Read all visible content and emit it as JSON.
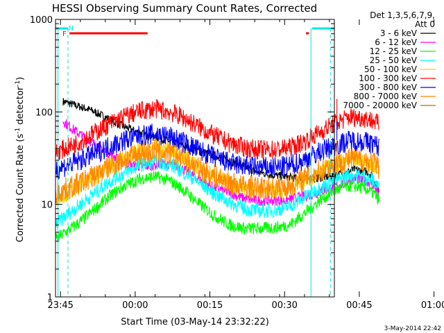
{
  "chart_data": {
    "type": "line",
    "title": "HESSI Observing Summary Count Rates, Corrected",
    "xlabel": "Start Time (03-May-14 23:32:22)",
    "ylabel_main": "Corrected Count Rate (s",
    "ylabel_sup1": "-1",
    "ylabel_mid": " detector",
    "ylabel_sup2": "-1",
    "ylabel_end": ")",
    "yscale": "log",
    "ylim": [
      1,
      1000
    ],
    "xlim_minutes": [
      -16,
      40
    ],
    "x_ticks": [
      {
        "m": -15,
        "label": "23:45"
      },
      {
        "m": 0,
        "label": "00:00"
      },
      {
        "m": 15,
        "label": "00:15"
      },
      {
        "m": 30,
        "label": "00:30"
      },
      {
        "m": 45,
        "label": "00:45"
      },
      {
        "m": 60,
        "label": "01:00"
      }
    ],
    "y_ticks": [
      {
        "v": 1,
        "label": "1"
      },
      {
        "v": 10,
        "label": "10"
      },
      {
        "v": 100,
        "label": "100"
      },
      {
        "v": 1000,
        "label": "1000"
      }
    ],
    "legend_header": [
      "Det 1,3,5,6,7,9,",
      "Att 0"
    ],
    "timestamp": "3-May-2014 22:42",
    "markers": [
      {
        "label": "F",
        "color": "#ff0000"
      },
      {
        "label": "N",
        "color": "#00e5e5"
      }
    ],
    "series": [
      {
        "name": "3 - 6 keV",
        "color": "#000000",
        "points": [
          [
            -14.5,
            130
          ],
          [
            -12,
            118
          ],
          [
            -9,
            105
          ],
          [
            -6,
            88
          ],
          [
            -3,
            72
          ],
          [
            0,
            62
          ],
          [
            3,
            55
          ],
          [
            6,
            50
          ],
          [
            9,
            44
          ],
          [
            12,
            39
          ],
          [
            15,
            35
          ],
          [
            18,
            31
          ],
          [
            21,
            27
          ],
          [
            24,
            23
          ],
          [
            27,
            21
          ],
          [
            30,
            20
          ],
          [
            33,
            19
          ],
          [
            36,
            19
          ],
          [
            39,
            20
          ],
          [
            42,
            22
          ],
          [
            44,
            24
          ],
          [
            46,
            23
          ],
          [
            47.5,
            21
          ],
          [
            49,
            14
          ]
        ]
      },
      {
        "name": "6 - 12 keV",
        "color": "#ff00ff",
        "points": [
          [
            -14.5,
            80
          ],
          [
            -12,
            62
          ],
          [
            -9,
            48
          ],
          [
            -6,
            38
          ],
          [
            -3,
            30
          ],
          [
            0,
            26
          ],
          [
            3,
            26
          ],
          [
            6,
            28
          ],
          [
            9,
            25
          ],
          [
            12,
            20
          ],
          [
            15,
            16
          ],
          [
            18,
            14
          ],
          [
            21,
            12
          ],
          [
            24,
            11
          ],
          [
            27,
            11
          ],
          [
            30,
            11
          ],
          [
            33,
            12
          ],
          [
            36,
            13
          ],
          [
            39,
            15
          ],
          [
            42,
            17
          ],
          [
            44,
            19
          ],
          [
            46,
            18
          ],
          [
            47.5,
            17
          ],
          [
            49,
            13
          ]
        ]
      },
      {
        "name": "12 - 25 keV",
        "color": "#00ff00",
        "points": [
          [
            -16,
            4.2
          ],
          [
            -14,
            5
          ],
          [
            -11,
            6.5
          ],
          [
            -8,
            9
          ],
          [
            -5,
            12.5
          ],
          [
            -2,
            16
          ],
          [
            1,
            19
          ],
          [
            4,
            20
          ],
          [
            7,
            18
          ],
          [
            10,
            14
          ],
          [
            13,
            10
          ],
          [
            16,
            7.5
          ],
          [
            19,
            6
          ],
          [
            22,
            5.5
          ],
          [
            25,
            5.5
          ],
          [
            28,
            5.6
          ],
          [
            31,
            6
          ],
          [
            34,
            8
          ],
          [
            37,
            11
          ],
          [
            40,
            14
          ],
          [
            43,
            16
          ],
          [
            46,
            15
          ],
          [
            48,
            13
          ],
          [
            49,
            11
          ]
        ]
      },
      {
        "name": "25 - 50 keV",
        "color": "#00ffff",
        "points": [
          [
            -16,
            6
          ],
          [
            -14,
            7.5
          ],
          [
            -11,
            10
          ],
          [
            -8,
            13.5
          ],
          [
            -5,
            18
          ],
          [
            -2,
            22
          ],
          [
            1,
            27
          ],
          [
            4,
            29
          ],
          [
            7,
            27
          ],
          [
            10,
            22
          ],
          [
            13,
            17
          ],
          [
            16,
            13
          ],
          [
            19,
            10.5
          ],
          [
            22,
            9
          ],
          [
            25,
            8.5
          ],
          [
            28,
            8.6
          ],
          [
            31,
            9.5
          ],
          [
            34,
            12
          ],
          [
            37,
            15
          ],
          [
            40,
            18
          ],
          [
            43,
            21
          ],
          [
            46,
            20
          ],
          [
            48,
            18
          ],
          [
            49,
            15
          ]
        ]
      },
      {
        "name": "50 - 100 keV",
        "color": "#ffcc00",
        "points": [
          [
            -16,
            12
          ],
          [
            -14,
            13
          ],
          [
            -11,
            16
          ],
          [
            -8,
            20
          ],
          [
            -5,
            26
          ],
          [
            -2,
            32
          ],
          [
            1,
            38
          ],
          [
            4,
            42
          ],
          [
            7,
            38
          ],
          [
            10,
            32
          ],
          [
            13,
            25
          ],
          [
            16,
            20
          ],
          [
            19,
            17
          ],
          [
            22,
            15
          ],
          [
            25,
            14
          ],
          [
            28,
            14
          ],
          [
            31,
            15
          ],
          [
            34,
            18
          ],
          [
            37,
            23
          ],
          [
            40,
            27
          ],
          [
            43,
            30
          ],
          [
            46,
            29
          ],
          [
            48,
            27
          ],
          [
            49,
            22
          ]
        ]
      },
      {
        "name": "100 - 300 keV",
        "color": "#ff0000",
        "points": [
          [
            -16,
            37
          ],
          [
            -14,
            40
          ],
          [
            -11,
            48
          ],
          [
            -8,
            60
          ],
          [
            -5,
            75
          ],
          [
            -2,
            90
          ],
          [
            1,
            102
          ],
          [
            4,
            108
          ],
          [
            7,
            100
          ],
          [
            10,
            85
          ],
          [
            13,
            68
          ],
          [
            16,
            55
          ],
          [
            19,
            46
          ],
          [
            22,
            41
          ],
          [
            25,
            39
          ],
          [
            28,
            39
          ],
          [
            31,
            41
          ],
          [
            34,
            48
          ],
          [
            37,
            60
          ],
          [
            40,
            75
          ],
          [
            43,
            88
          ],
          [
            46,
            86
          ],
          [
            48,
            80
          ],
          [
            49,
            72
          ]
        ]
      },
      {
        "name": "300 - 800 keV",
        "color": "#0000ff",
        "points": [
          [
            -16,
            24
          ],
          [
            -14,
            26
          ],
          [
            -11,
            30
          ],
          [
            -8,
            36
          ],
          [
            -5,
            43
          ],
          [
            -2,
            50
          ],
          [
            1,
            55
          ],
          [
            4,
            58
          ],
          [
            7,
            54
          ],
          [
            10,
            46
          ],
          [
            13,
            38
          ],
          [
            16,
            32
          ],
          [
            19,
            28
          ],
          [
            22,
            26
          ],
          [
            25,
            25
          ],
          [
            28,
            25
          ],
          [
            31,
            26
          ],
          [
            34,
            30
          ],
          [
            37,
            37
          ],
          [
            40,
            43
          ],
          [
            43,
            49
          ],
          [
            46,
            48
          ],
          [
            48,
            45
          ],
          [
            49,
            41
          ]
        ]
      },
      {
        "name": "800 - 7000 keV",
        "color": "#ff8800",
        "points": [
          [
            -16,
            13
          ],
          [
            -14,
            14.5
          ],
          [
            -11,
            17
          ],
          [
            -8,
            21
          ],
          [
            -5,
            26
          ],
          [
            -2,
            31
          ],
          [
            1,
            35
          ],
          [
            4,
            37
          ],
          [
            7,
            35
          ],
          [
            10,
            30
          ],
          [
            13,
            24
          ],
          [
            16,
            20
          ],
          [
            19,
            17
          ],
          [
            22,
            15.5
          ],
          [
            25,
            15
          ],
          [
            28,
            15
          ],
          [
            31,
            16
          ],
          [
            34,
            19
          ],
          [
            37,
            23
          ],
          [
            40,
            27
          ],
          [
            43,
            31
          ],
          [
            46,
            30
          ],
          [
            48,
            28
          ],
          [
            49,
            24
          ]
        ]
      },
      {
        "name": "7000 - 20000 keV",
        "color": "#997700",
        "points": []
      }
    ]
  }
}
